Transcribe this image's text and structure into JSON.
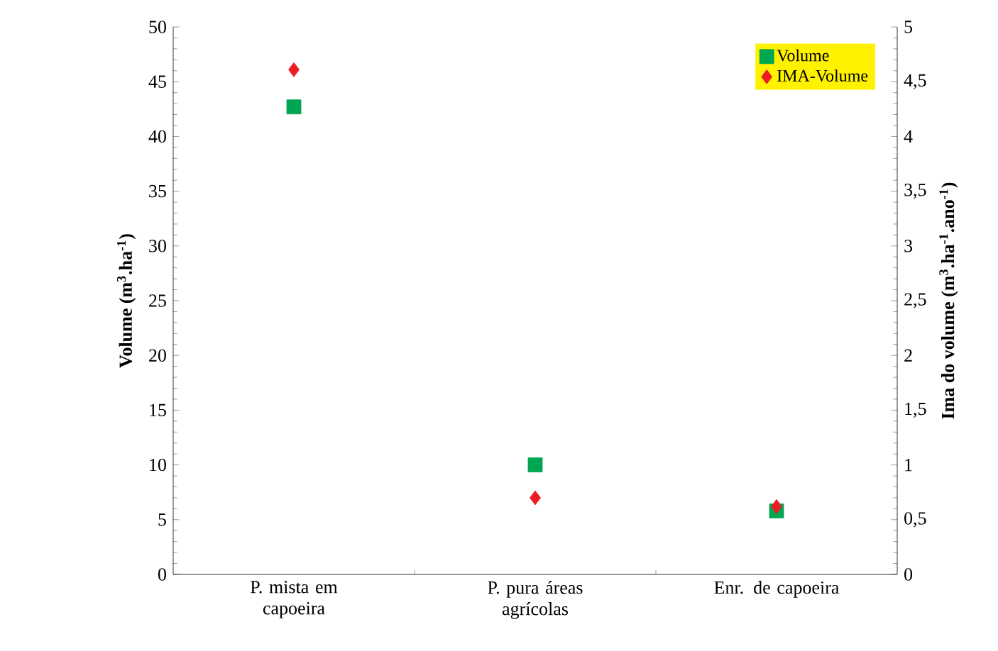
{
  "chart_data": {
    "type": "scatter",
    "categories": [
      "P. mista em capoeira",
      "P. pura áreas agrícolas",
      "Enr. de capoeira"
    ],
    "ylabel": "Volume (m$^{3}$.ha$^{-1}$)",
    "y2label": "Ima do volume (m$^{3}$.ha$^{-1}$.ano$^{-1}$)",
    "ylim": [
      0,
      50
    ],
    "yticks": [
      0,
      5,
      10,
      15,
      20,
      25,
      30,
      35,
      40,
      45,
      50
    ],
    "y2lim": [
      0,
      5
    ],
    "y2ticks": [
      0,
      {
        "value": 0.5,
        "label": "0,5"
      },
      1,
      {
        "value": 1.5,
        "label": "1,5"
      },
      2,
      {
        "value": 2.5,
        "label": "2,5"
      },
      3,
      {
        "value": 3.5,
        "label": "3,5"
      },
      4,
      {
        "value": 4.5,
        "label": "4,5"
      },
      5
    ],
    "series": [
      {
        "name": "Volume",
        "color": "#00a651",
        "marker": "square",
        "values": [
          42.7,
          10.0,
          5.8
        ]
      },
      {
        "name": "IMA-Volume",
        "color": "#ed1c24",
        "marker": "diamond",
        "axis": "y2",
        "values": [
          4.61,
          0.7,
          0.62
        ]
      }
    ],
    "legend": "top right",
    "grid": false
  }
}
